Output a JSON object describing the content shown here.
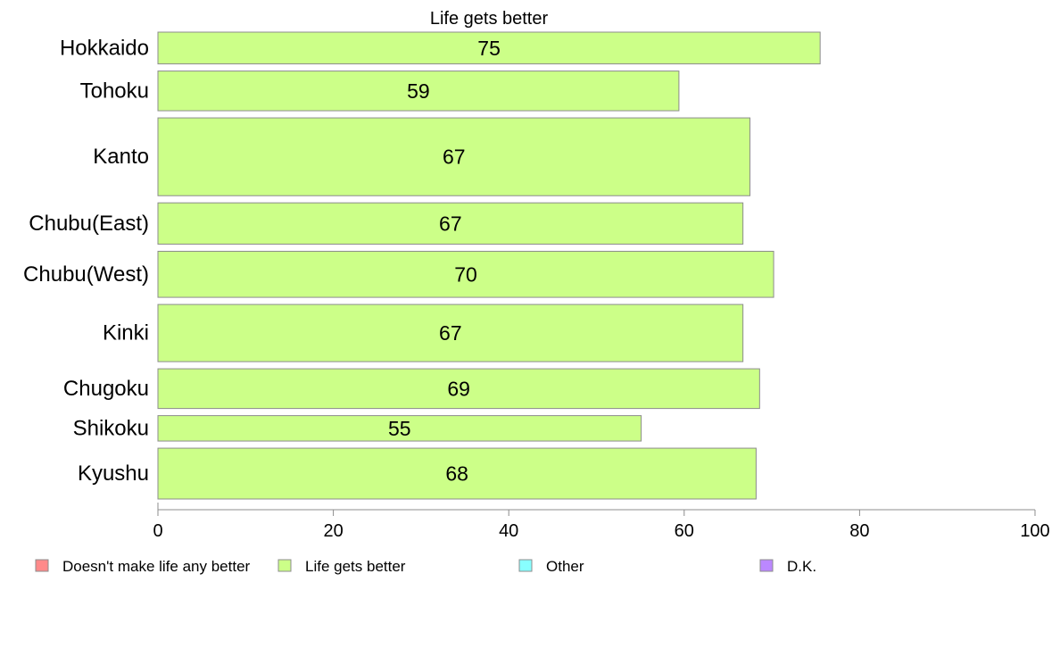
{
  "chart_data": {
    "type": "bar",
    "orientation": "horizontal",
    "title": "Life gets better",
    "categories": [
      "Hokkaido",
      "Tohoku",
      "Kanto",
      "Chubu(East)",
      "Chubu(West)",
      "Kinki",
      "Chugoku",
      "Shikoku",
      "Kyushu"
    ],
    "values": [
      75.5,
      59.4,
      67.5,
      66.7,
      70.2,
      66.7,
      68.6,
      55.1,
      68.2
    ],
    "value_labels": [
      "75",
      "59",
      "67",
      "67",
      "70",
      "67",
      "69",
      "55",
      "68"
    ],
    "relative_sample_size": [
      1,
      1.25,
      2.45,
      1.3,
      1.45,
      1.8,
      1.25,
      0.8,
      1.6
    ],
    "xlim": [
      0,
      100
    ],
    "xticks": [
      0,
      20,
      40,
      60,
      80,
      100
    ],
    "grid": false,
    "legend": {
      "placement": "bottom",
      "items": [
        {
          "label": "Doesn't make life any better",
          "color": "#ff8a8a"
        },
        {
          "label": "Life gets better",
          "color": "#ccff88"
        },
        {
          "label": "Other",
          "color": "#88ffff"
        },
        {
          "label": "D.K.",
          "color": "#bb88ff"
        }
      ]
    },
    "bar_color": "#ccff88",
    "bar_stroke": "#8c8c8c"
  }
}
